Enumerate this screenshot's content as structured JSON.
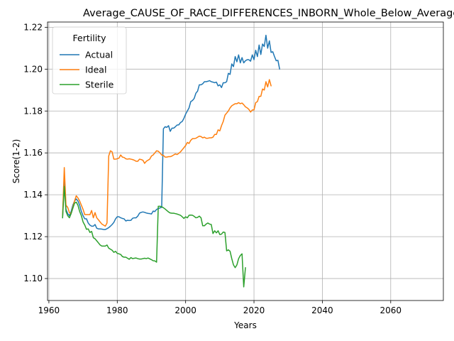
{
  "chart_data": {
    "type": "line",
    "title": "Average_CAUSE_OF_RACE_DIFFERENCES_INBORN_Whole_Below_Average_Generati",
    "xlabel": "Years",
    "ylabel": "Score(1-2)",
    "xlim": [
      1959.6,
      2075.4
    ],
    "ylim": [
      1.0895,
      1.2225
    ],
    "x_ticks": [
      1960,
      1980,
      2000,
      2020,
      2040,
      2060
    ],
    "x_tick_labels": [
      "1960",
      "1980",
      "2000",
      "2020",
      "2040",
      "2060"
    ],
    "y_ticks": [
      1.1,
      1.12,
      1.14,
      1.16,
      1.18,
      1.2,
      1.22
    ],
    "y_tick_labels": [
      "1.10",
      "1.12",
      "1.14",
      "1.16",
      "1.18",
      "1.20",
      "1.22"
    ],
    "grid": true,
    "legend": {
      "title": "Fertility",
      "position": "upper left"
    },
    "series": [
      {
        "name": "Actual",
        "color": "#1f77b4",
        "x_start": 1964,
        "x_step": 0.5,
        "values": [
          1.129,
          1.148,
          1.133,
          1.131,
          1.13,
          1.132,
          1.135,
          1.137,
          1.138,
          1.137,
          1.135,
          1.132,
          1.13,
          1.1285,
          1.1285,
          1.1265,
          1.1255,
          1.125,
          1.125,
          1.1258,
          1.124,
          1.1237,
          1.1237,
          1.1236,
          1.1234,
          1.1234,
          1.1238,
          1.1243,
          1.125,
          1.1258,
          1.1268,
          1.1285,
          1.1295,
          1.1295,
          1.129,
          1.1287,
          1.1285,
          1.1275,
          1.1278,
          1.1277,
          1.1278,
          1.1288,
          1.129,
          1.129,
          1.1298,
          1.1312,
          1.1316,
          1.1318,
          1.1316,
          1.1313,
          1.1311,
          1.131,
          1.1308,
          1.1322,
          1.132,
          1.133,
          1.1334,
          1.1337,
          1.134,
          1.1715,
          1.1725,
          1.1722,
          1.173,
          1.1703,
          1.1718,
          1.1718,
          1.1725,
          1.1733,
          1.1734,
          1.1745,
          1.175,
          1.1765,
          1.1785,
          1.18,
          1.1815,
          1.1845,
          1.185,
          1.186,
          1.1885,
          1.1895,
          1.1925,
          1.1925,
          1.193,
          1.194,
          1.194,
          1.1942,
          1.1945,
          1.194,
          1.1938,
          1.1935,
          1.1938,
          1.192,
          1.1925,
          1.1912,
          1.1935,
          1.1935,
          1.194,
          1.198,
          1.1975,
          1.2025,
          1.2012,
          1.206,
          1.2035,
          1.2068,
          1.203,
          1.2055,
          1.203,
          1.204,
          1.2045,
          1.2045,
          1.2038,
          1.2068,
          1.2045,
          1.209,
          1.206,
          1.2115,
          1.207,
          1.212,
          1.2108,
          1.2162,
          1.21,
          1.2135,
          1.208,
          1.2083,
          1.206,
          1.204,
          1.2042,
          1.2
        ]
      },
      {
        "name": "Ideal",
        "color": "#ff7f0e",
        "x_start": 1964,
        "x_step": 0.5,
        "values": [
          1.1295,
          1.153,
          1.135,
          1.134,
          1.1315,
          1.131,
          1.134,
          1.137,
          1.1395,
          1.1385,
          1.137,
          1.135,
          1.133,
          1.1305,
          1.1305,
          1.1305,
          1.1305,
          1.1325,
          1.129,
          1.1315,
          1.129,
          1.128,
          1.127,
          1.126,
          1.1255,
          1.125,
          1.1265,
          1.1585,
          1.161,
          1.1605,
          1.157,
          1.157,
          1.1572,
          1.1575,
          1.159,
          1.158,
          1.1578,
          1.1572,
          1.157,
          1.1572,
          1.157,
          1.1568,
          1.1565,
          1.156,
          1.156,
          1.157,
          1.1568,
          1.1565,
          1.155,
          1.156,
          1.1565,
          1.157,
          1.1585,
          1.159,
          1.16,
          1.161,
          1.1608,
          1.16,
          1.159,
          1.1588,
          1.158,
          1.158,
          1.1582,
          1.1582,
          1.1585,
          1.159,
          1.1595,
          1.1592,
          1.1598,
          1.1605,
          1.1615,
          1.1625,
          1.1635,
          1.165,
          1.1645,
          1.166,
          1.1668,
          1.1668,
          1.167,
          1.1675,
          1.168,
          1.1678,
          1.1672,
          1.1675,
          1.167,
          1.167,
          1.1672,
          1.1672,
          1.1675,
          1.1688,
          1.1688,
          1.171,
          1.1705,
          1.173,
          1.175,
          1.178,
          1.179,
          1.18,
          1.1815,
          1.1825,
          1.183,
          1.1835,
          1.1835,
          1.184,
          1.1835,
          1.1838,
          1.183,
          1.182,
          1.1815,
          1.1808,
          1.1795,
          1.1805,
          1.1805,
          1.184,
          1.1845,
          1.187,
          1.187,
          1.1905,
          1.19,
          1.194,
          1.1915,
          1.195,
          1.192
        ]
      },
      {
        "name": "Sterile",
        "color": "#2ca02c",
        "x_start": 1964,
        "x_step": 0.5,
        "values": [
          1.129,
          1.144,
          1.132,
          1.13,
          1.129,
          1.131,
          1.1335,
          1.136,
          1.1365,
          1.135,
          1.132,
          1.13,
          1.127,
          1.1255,
          1.1235,
          1.1237,
          1.122,
          1.1225,
          1.1195,
          1.119,
          1.118,
          1.117,
          1.116,
          1.1155,
          1.1155,
          1.1155,
          1.116,
          1.1145,
          1.114,
          1.1135,
          1.1125,
          1.113,
          1.112,
          1.1118,
          1.1115,
          1.1105,
          1.1102,
          1.1102,
          1.1097,
          1.1092,
          1.11,
          1.1095,
          1.1097,
          1.1098,
          1.1095,
          1.1093,
          1.1093,
          1.1095,
          1.1097,
          1.1095,
          1.1098,
          1.1094,
          1.109,
          1.1085,
          1.1084,
          1.1078,
          1.1345,
          1.1345,
          1.1343,
          1.1338,
          1.1332,
          1.1325,
          1.1318,
          1.1313,
          1.1312,
          1.1312,
          1.131,
          1.1308,
          1.1305,
          1.1302,
          1.1295,
          1.1287,
          1.1295,
          1.129,
          1.1302,
          1.1303,
          1.1302,
          1.1297,
          1.129,
          1.1292,
          1.1298,
          1.129,
          1.1252,
          1.1252,
          1.126,
          1.1265,
          1.126,
          1.1258,
          1.1215,
          1.1228,
          1.1218,
          1.1228,
          1.121,
          1.1212,
          1.1222,
          1.122,
          1.1132,
          1.1137,
          1.113,
          1.1095,
          1.1065,
          1.1052,
          1.1065,
          1.1095,
          1.111,
          1.1118,
          1.096,
          1.1052
        ]
      }
    ]
  }
}
